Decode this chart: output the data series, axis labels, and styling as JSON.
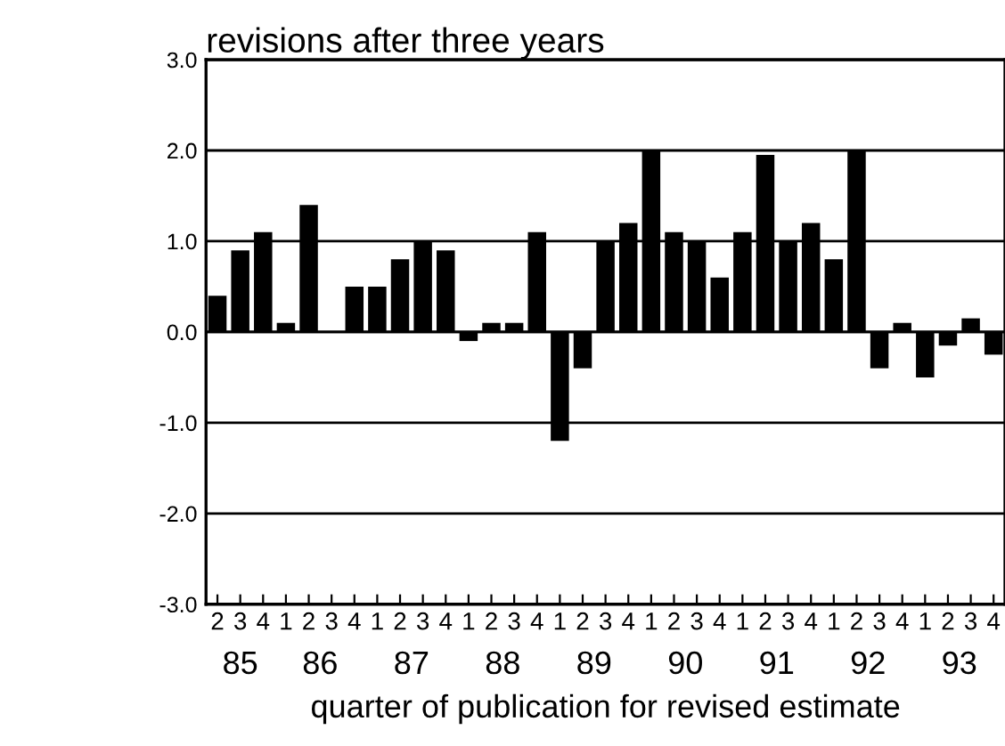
{
  "chart_data": {
    "type": "bar",
    "title": "revisions after three years",
    "xlabel": "quarter of publication for revised estimate",
    "categories": [
      "2",
      "3",
      "4",
      "1",
      "2",
      "3",
      "4",
      "1",
      "2",
      "3",
      "4",
      "1",
      "2",
      "3",
      "4",
      "1",
      "2",
      "3",
      "4",
      "1",
      "2",
      "3",
      "4",
      "1",
      "2",
      "3",
      "4",
      "1",
      "2",
      "3",
      "4",
      "1",
      "2",
      "3",
      "4"
    ],
    "values": [
      0.4,
      0.9,
      1.1,
      0.1,
      1.4,
      0,
      0.5,
      0.5,
      0.8,
      1.0,
      0.9,
      -0.1,
      0.1,
      0.1,
      1.1,
      -1.2,
      -0.4,
      1.0,
      1.2,
      2.0,
      1.1,
      1.0,
      0.6,
      1.1,
      1.95,
      1.0,
      1.2,
      0.8,
      2.0,
      -0.4,
      0.1,
      -0.5,
      -0.15,
      0.15,
      -0.25
    ],
    "color": "#000000",
    "annotations": [
      "85",
      "86",
      "87",
      "88",
      "89",
      "90",
      "91",
      "92",
      "93"
    ],
    "ylim": [
      -3.0,
      3.0
    ],
    "yticks": [
      {
        "value": -3.0,
        "label": "-3.0"
      },
      {
        "value": -2.0,
        "label": "-2.0"
      },
      {
        "value": -1.0,
        "label": "-1.0"
      },
      {
        "value": 0.0,
        "label": "0.0"
      },
      {
        "value": 1.0,
        "label": "1.0"
      },
      {
        "value": 2.0,
        "label": "2.0"
      },
      {
        "value": 3.0,
        "label": "3.0"
      }
    ],
    "grid": "y"
  }
}
